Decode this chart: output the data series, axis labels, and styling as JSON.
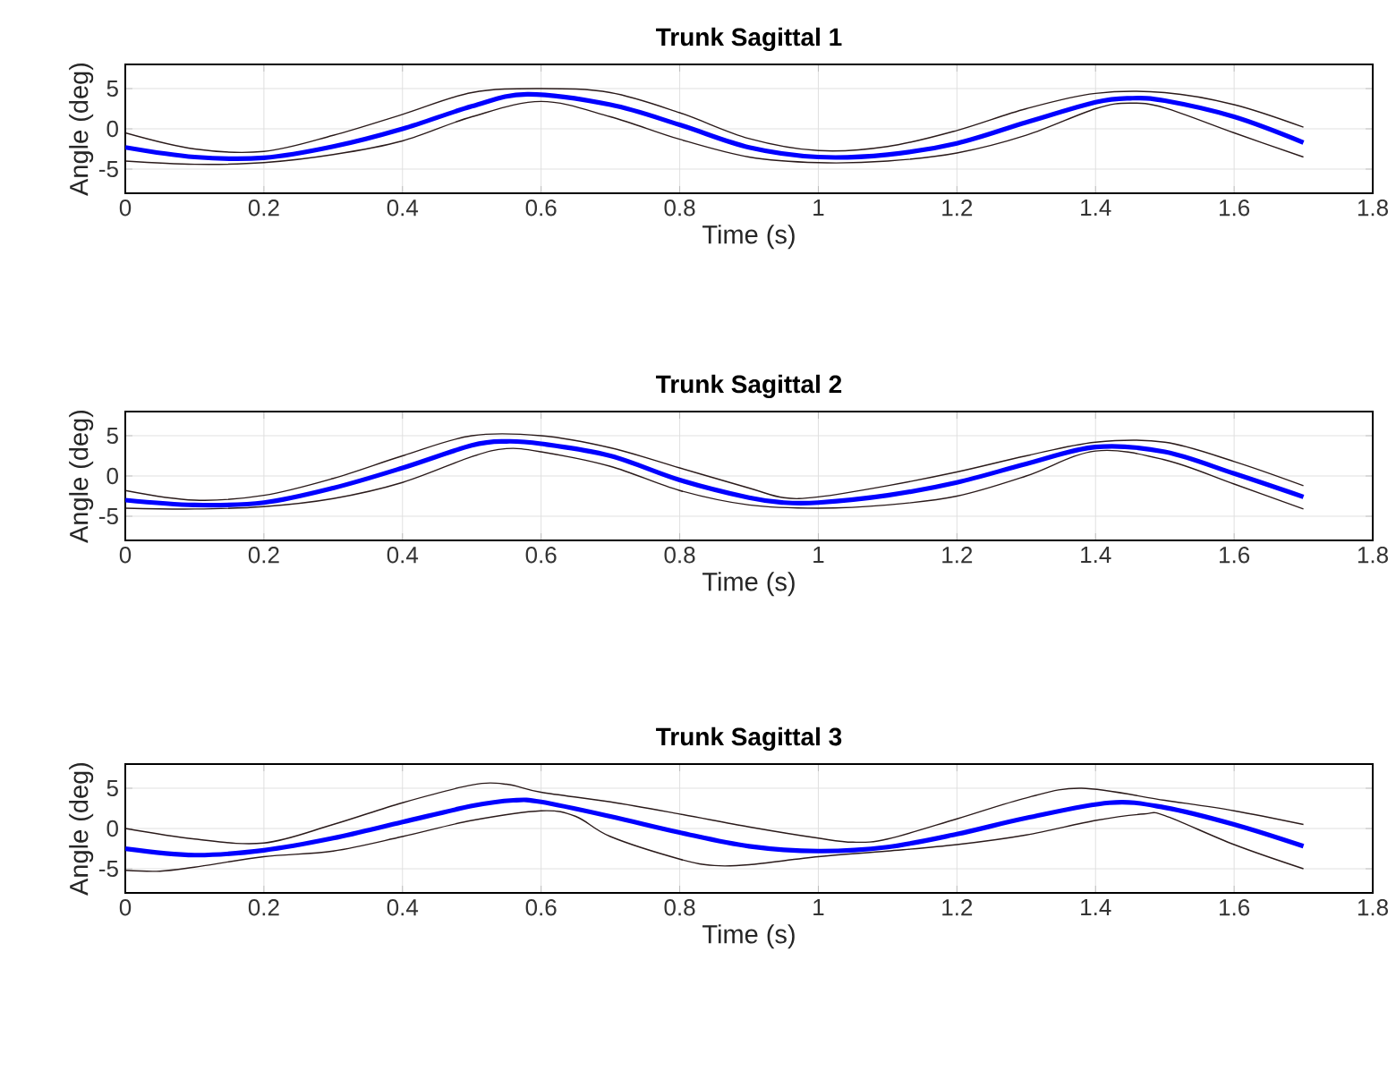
{
  "chart_data": [
    {
      "type": "line",
      "title": "Trunk Sagittal 1",
      "xlabel": "Time (s)",
      "ylabel": "Angle (deg)",
      "xlim": [
        0,
        1.8
      ],
      "ylim": [
        -8,
        8
      ],
      "xticks": [
        0,
        0.2,
        0.4,
        0.6,
        0.8,
        1,
        1.2,
        1.4,
        1.6,
        1.8
      ],
      "yticks": [
        -5,
        0,
        5
      ],
      "grid": true,
      "line_style": "solid",
      "series": [
        {
          "color": "#0000ff",
          "x": [
            0,
            0.1,
            0.2,
            0.3,
            0.4,
            0.5,
            0.58,
            0.7,
            0.8,
            0.9,
            1.0,
            1.1,
            1.2,
            1.3,
            1.4,
            1.45,
            1.5,
            1.6,
            1.7
          ],
          "values": [
            -2.3,
            -3.5,
            -3.6,
            -2.2,
            0,
            2.8,
            4.3,
            3.0,
            0.5,
            -2.3,
            -3.5,
            -3.2,
            -1.8,
            0.8,
            3.3,
            3.8,
            3.5,
            1.5,
            -1.7
          ]
        },
        {
          "color": "#2a1a1a",
          "x": [
            0,
            0.1,
            0.2,
            0.3,
            0.4,
            0.5,
            0.6,
            0.7,
            0.8,
            0.9,
            1.0,
            1.1,
            1.2,
            1.3,
            1.4,
            1.5,
            1.6,
            1.7
          ],
          "values": [
            -0.5,
            -2.5,
            -2.8,
            -0.8,
            1.8,
            4.5,
            5.0,
            4.5,
            2.0,
            -1.2,
            -2.7,
            -2.2,
            -0.2,
            2.5,
            4.4,
            4.5,
            3.0,
            0.2
          ]
        },
        {
          "color": "#2a1a1a",
          "x": [
            0,
            0.1,
            0.2,
            0.3,
            0.4,
            0.5,
            0.6,
            0.7,
            0.8,
            0.9,
            1.0,
            1.1,
            1.2,
            1.3,
            1.4,
            1.45,
            1.5,
            1.6,
            1.7
          ],
          "values": [
            -4.0,
            -4.4,
            -4.2,
            -3.2,
            -1.5,
            1.5,
            3.4,
            1.5,
            -1.3,
            -3.5,
            -4.2,
            -4.0,
            -3.0,
            -0.8,
            2.5,
            3.2,
            2.6,
            -0.5,
            -3.5
          ]
        }
      ]
    },
    {
      "type": "line",
      "title": "Trunk Sagittal 2",
      "xlabel": "Time (s)",
      "ylabel": "Angle (deg)",
      "xlim": [
        0,
        1.8
      ],
      "ylim": [
        -8,
        8
      ],
      "xticks": [
        0,
        0.2,
        0.4,
        0.6,
        0.8,
        1,
        1.2,
        1.4,
        1.6,
        1.8
      ],
      "yticks": [
        -5,
        0,
        5
      ],
      "grid": true,
      "line_style": "solid",
      "series": [
        {
          "color": "#0000ff",
          "x": [
            0,
            0.1,
            0.2,
            0.3,
            0.4,
            0.5,
            0.55,
            0.6,
            0.7,
            0.8,
            0.9,
            0.95,
            1.0,
            1.1,
            1.2,
            1.3,
            1.4,
            1.5,
            1.6,
            1.7
          ],
          "values": [
            -3.0,
            -3.6,
            -3.3,
            -1.5,
            1.0,
            3.8,
            4.3,
            4.0,
            2.5,
            -0.5,
            -2.7,
            -3.3,
            -3.3,
            -2.4,
            -0.8,
            1.5,
            3.6,
            3.0,
            0.3,
            -2.6
          ]
        },
        {
          "color": "#2a1a1a",
          "x": [
            0,
            0.1,
            0.2,
            0.3,
            0.4,
            0.5,
            0.6,
            0.7,
            0.8,
            0.9,
            0.95,
            1.0,
            1.1,
            1.2,
            1.3,
            1.4,
            1.5,
            1.6,
            1.7
          ],
          "values": [
            -1.8,
            -3.0,
            -2.4,
            -0.3,
            2.5,
            5.0,
            5.0,
            3.5,
            1.0,
            -1.5,
            -2.7,
            -2.6,
            -1.2,
            0.5,
            2.5,
            4.2,
            4.2,
            1.8,
            -1.2
          ]
        },
        {
          "color": "#2a1a1a",
          "x": [
            0,
            0.1,
            0.2,
            0.3,
            0.4,
            0.5,
            0.55,
            0.6,
            0.7,
            0.8,
            0.9,
            1.0,
            1.1,
            1.2,
            1.3,
            1.4,
            1.5,
            1.6,
            1.7
          ],
          "values": [
            -4.0,
            -4.1,
            -3.8,
            -2.8,
            -0.8,
            2.4,
            3.4,
            3.0,
            1.2,
            -1.8,
            -3.6,
            -4.0,
            -3.6,
            -2.5,
            0,
            3.1,
            2.0,
            -1.0,
            -4.1
          ]
        }
      ]
    },
    {
      "type": "line",
      "title": "Trunk Sagittal 3",
      "xlabel": "Time (s)",
      "ylabel": "Angle (deg)",
      "xlim": [
        0,
        1.8
      ],
      "ylim": [
        -8,
        8
      ],
      "xticks": [
        0,
        0.2,
        0.4,
        0.6,
        0.8,
        1,
        1.2,
        1.4,
        1.6,
        1.8
      ],
      "yticks": [
        -5,
        0,
        5
      ],
      "grid": true,
      "line_style": "solid",
      "series": [
        {
          "color": "#0000ff",
          "x": [
            0,
            0.1,
            0.2,
            0.3,
            0.4,
            0.5,
            0.56,
            0.6,
            0.7,
            0.8,
            0.9,
            1.0,
            1.1,
            1.2,
            1.3,
            1.42,
            1.5,
            1.6,
            1.7
          ],
          "values": [
            -2.5,
            -3.3,
            -2.7,
            -1.2,
            0.8,
            2.8,
            3.5,
            3.3,
            1.5,
            -0.5,
            -2.2,
            -2.8,
            -2.3,
            -0.7,
            1.3,
            3.2,
            2.6,
            0.5,
            -2.2
          ]
        },
        {
          "color": "#2a1a1a",
          "x": [
            0,
            0.1,
            0.2,
            0.3,
            0.4,
            0.5,
            0.55,
            0.6,
            0.7,
            0.8,
            0.9,
            1.0,
            1.05,
            1.1,
            1.2,
            1.3,
            1.38,
            1.5,
            1.6,
            1.7
          ],
          "values": [
            0,
            -1.3,
            -1.8,
            0.5,
            3.2,
            5.4,
            5.5,
            4.5,
            3.3,
            1.8,
            0.2,
            -1.2,
            -1.7,
            -1.3,
            1.2,
            3.8,
            5.0,
            3.5,
            2.2,
            0.5
          ]
        },
        {
          "color": "#2a1a1a",
          "x": [
            0,
            0.05,
            0.1,
            0.2,
            0.3,
            0.4,
            0.5,
            0.6,
            0.65,
            0.7,
            0.8,
            0.85,
            0.9,
            1.0,
            1.1,
            1.2,
            1.3,
            1.4,
            1.47,
            1.5,
            1.6,
            1.7
          ],
          "values": [
            -5.2,
            -5.3,
            -4.8,
            -3.5,
            -2.8,
            -1.0,
            1.0,
            2.2,
            1.5,
            -1.0,
            -3.8,
            -4.6,
            -4.5,
            -3.5,
            -2.8,
            -2.0,
            -0.8,
            1.0,
            1.8,
            1.6,
            -2.0,
            -5.0
          ]
        }
      ]
    }
  ]
}
